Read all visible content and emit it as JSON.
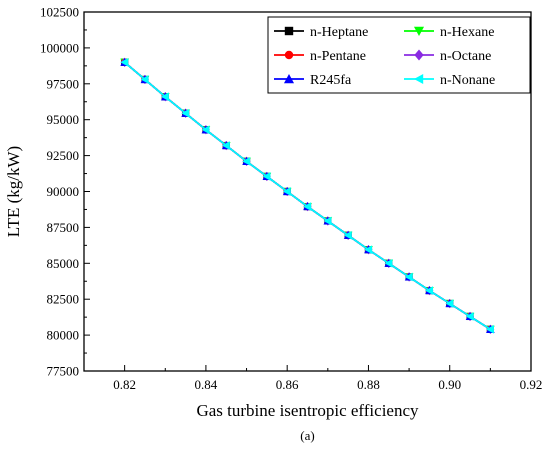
{
  "chart_data": {
    "type": "line",
    "xlabel": "Gas turbine isentropic efficiency",
    "ylabel": "LTE (kg/kW)",
    "caption": "(a)",
    "xlim": [
      0.81,
      0.92
    ],
    "ylim": [
      77500,
      102500
    ],
    "x_ticks": [
      "0.82",
      "0.84",
      "0.86",
      "0.88",
      "0.90",
      "0.92"
    ],
    "x_tick_values": [
      0.82,
      0.84,
      0.86,
      0.88,
      0.9,
      0.92
    ],
    "y_ticks": [
      "77500",
      "80000",
      "82500",
      "85000",
      "87500",
      "90000",
      "92500",
      "95000",
      "97500",
      "100000",
      "102500"
    ],
    "y_tick_values": [
      77500,
      80000,
      82500,
      85000,
      87500,
      90000,
      92500,
      95000,
      97500,
      100000,
      102500
    ],
    "legend_position": "top-right",
    "x": [
      0.82,
      0.825,
      0.83,
      0.835,
      0.84,
      0.845,
      0.85,
      0.855,
      0.86,
      0.865,
      0.87,
      0.875,
      0.88,
      0.885,
      0.89,
      0.895,
      0.9,
      0.905,
      0.91
    ],
    "series": [
      {
        "name": "n-Heptane",
        "color": "#000000",
        "marker": "square",
        "values": [
          99000,
          97800,
          96600,
          95450,
          94300,
          93200,
          92100,
          91050,
          90000,
          88950,
          87950,
          86950,
          85950,
          85000,
          84050,
          83100,
          82200,
          81300,
          80400
        ]
      },
      {
        "name": "n-Hexane",
        "color": "#00ff00",
        "marker": "triangle-down",
        "values": [
          99000,
          97800,
          96600,
          95450,
          94300,
          93200,
          92100,
          91050,
          90000,
          88950,
          87950,
          86950,
          85950,
          85000,
          84050,
          83100,
          82200,
          81300,
          80400
        ]
      },
      {
        "name": "n-Pentane",
        "color": "#ff0000",
        "marker": "circle",
        "values": [
          99000,
          97800,
          96600,
          95450,
          94300,
          93200,
          92100,
          91050,
          90000,
          88950,
          87950,
          86950,
          85950,
          85000,
          84050,
          83100,
          82200,
          81300,
          80400
        ]
      },
      {
        "name": "n-Octane",
        "color": "#8a2be2",
        "marker": "diamond",
        "values": [
          99000,
          97800,
          96600,
          95450,
          94300,
          93200,
          92100,
          91050,
          90000,
          88950,
          87950,
          86950,
          85950,
          85000,
          84050,
          83100,
          82200,
          81300,
          80400
        ]
      },
      {
        "name": "R245fa",
        "color": "#0000ff",
        "marker": "triangle-up",
        "values": [
          99000,
          97800,
          96600,
          95450,
          94300,
          93200,
          92100,
          91050,
          90000,
          88950,
          87950,
          86950,
          85950,
          85000,
          84050,
          83100,
          82200,
          81300,
          80400
        ]
      },
      {
        "name": "n-Nonane",
        "color": "#00ffff",
        "marker": "triangle-left",
        "values": [
          99000,
          97800,
          96600,
          95450,
          94300,
          93200,
          92100,
          91050,
          90000,
          88950,
          87950,
          86950,
          85950,
          85000,
          84050,
          83100,
          82200,
          81300,
          80400
        ]
      }
    ]
  }
}
